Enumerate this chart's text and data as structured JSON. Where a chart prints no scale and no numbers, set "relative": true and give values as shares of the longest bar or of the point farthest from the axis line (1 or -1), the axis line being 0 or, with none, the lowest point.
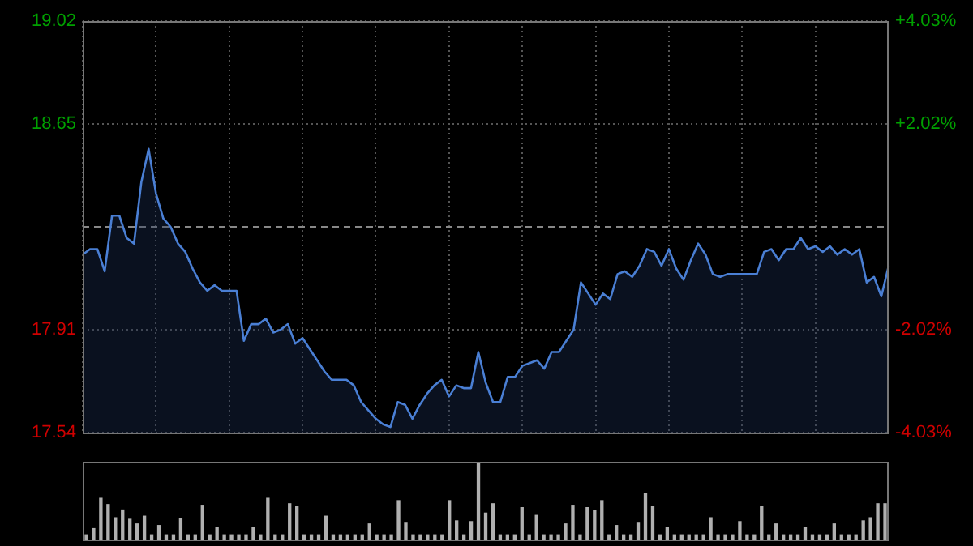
{
  "chart_data": [
    {
      "type": "area",
      "tick_labels": "y",
      "grid": true,
      "marker": "none",
      "line_style": "solid",
      "categories": [
        null,
        null,
        null,
        null,
        null,
        null,
        null,
        null,
        null,
        null,
        null,
        null,
        null,
        null,
        null,
        null,
        null,
        null,
        null,
        null,
        null,
        null,
        null,
        null,
        null,
        null,
        null,
        null,
        null,
        null,
        null,
        null,
        null,
        null,
        null,
        null,
        null,
        null,
        null,
        null,
        null,
        null,
        null,
        null,
        null,
        null,
        null,
        null,
        null,
        null,
        null,
        null,
        null,
        null,
        null,
        null,
        null,
        null,
        null,
        null,
        null,
        null,
        null,
        null,
        null,
        null,
        null,
        null,
        null,
        null,
        null,
        null,
        null,
        null,
        null,
        null,
        null,
        null,
        null,
        null,
        null,
        null,
        null,
        null,
        null,
        null,
        null,
        null,
        null,
        null,
        null,
        null,
        null,
        null,
        null,
        null,
        null,
        null,
        null,
        null,
        null,
        null,
        null,
        null,
        null,
        null,
        null,
        null,
        null,
        null,
        null
      ],
      "ylim": [
        17.54,
        19.02
      ],
      "yticks": [
        17.54,
        17.91,
        18.65,
        19.02
      ],
      "y2lim": [
        -4.03,
        4.03
      ],
      "y2ticks": [
        {
          "value": -4.03,
          "label": "-4.03%"
        },
        {
          "value": -2.02,
          "label": "-2.02%"
        },
        {
          "value": 2.02,
          "label": "+2.02%"
        },
        {
          "value": 4.03,
          "label": "+4.03%"
        }
      ],
      "ref_lines": [
        {
          "axis": "y",
          "value": 18.28,
          "line_style": "dashed",
          "color": "#888888"
        }
      ],
      "series": [
        {
          "color": "#4a7fd4",
          "values": [
            18.18,
            18.2,
            18.2,
            18.12,
            18.32,
            18.32,
            18.24,
            18.22,
            18.44,
            18.56,
            18.4,
            18.31,
            18.28,
            18.22,
            18.19,
            18.13,
            18.08,
            18.05,
            18.07,
            18.05,
            18.05,
            18.05,
            17.87,
            17.93,
            17.93,
            17.95,
            17.9,
            17.91,
            17.93,
            17.86,
            17.88,
            17.84,
            17.8,
            17.76,
            17.73,
            17.73,
            17.73,
            17.71,
            17.65,
            17.62,
            17.59,
            17.57,
            17.56,
            17.65,
            17.64,
            17.59,
            17.64,
            17.68,
            17.71,
            17.73,
            17.67,
            17.71,
            17.7,
            17.7,
            17.83,
            17.72,
            17.65,
            17.65,
            17.74,
            17.74,
            17.78,
            17.79,
            17.8,
            17.77,
            17.83,
            17.83,
            17.87,
            17.91,
            18.08,
            18.04,
            18.0,
            18.04,
            18.02,
            18.11,
            18.12,
            18.1,
            18.14,
            18.2,
            18.19,
            18.14,
            18.2,
            18.13,
            18.09,
            18.16,
            18.22,
            18.18,
            18.11,
            18.1,
            18.11,
            18.11,
            18.11,
            18.11,
            18.11,
            18.19,
            18.2,
            18.16,
            18.2,
            18.2,
            18.24,
            18.2,
            18.21,
            18.19,
            18.21,
            18.18,
            18.2,
            18.18,
            18.2,
            18.08,
            18.1,
            18.03,
            18.14
          ]
        }
      ]
    },
    {
      "type": "bar",
      "relative": true,
      "tick_labels": false,
      "color": "#b0b0b0",
      "categories": [
        null,
        null,
        null,
        null,
        null,
        null,
        null,
        null,
        null,
        null,
        null,
        null,
        null,
        null,
        null,
        null,
        null,
        null,
        null,
        null,
        null,
        null,
        null,
        null,
        null,
        null,
        null,
        null,
        null,
        null,
        null,
        null,
        null,
        null,
        null,
        null,
        null,
        null,
        null,
        null,
        null,
        null,
        null,
        null,
        null,
        null,
        null,
        null,
        null,
        null,
        null,
        null,
        null,
        null,
        null,
        null,
        null,
        null,
        null,
        null,
        null,
        null,
        null,
        null,
        null,
        null,
        null,
        null,
        null,
        null,
        null,
        null,
        null,
        null,
        null,
        null,
        null,
        null,
        null,
        null,
        null,
        null,
        null,
        null,
        null,
        null,
        null,
        null,
        null,
        null,
        null,
        null,
        null,
        null,
        null,
        null,
        null,
        null,
        null,
        null,
        null,
        null,
        null,
        null,
        null,
        null,
        null,
        null,
        null,
        null,
        null
      ],
      "values": [
        0.06,
        0.14,
        0.53,
        0.45,
        0.28,
        0.38,
        0.26,
        0.2,
        0.3,
        0.06,
        0.18,
        0.06,
        0.06,
        0.27,
        0.06,
        0.06,
        0.43,
        0.06,
        0.16,
        0.06,
        0.06,
        0.06,
        0.06,
        0.16,
        0.06,
        0.53,
        0.06,
        0.06,
        0.46,
        0.42,
        0.06,
        0.06,
        0.06,
        0.3,
        0.06,
        0.06,
        0.06,
        0.06,
        0.06,
        0.2,
        0.06,
        0.06,
        0.06,
        0.5,
        0.22,
        0.06,
        0.06,
        0.06,
        0.06,
        0.06,
        0.5,
        0.24,
        0.06,
        0.23,
        1,
        0.34,
        0.46,
        0.06,
        0.06,
        0.06,
        0.41,
        0.06,
        0.31,
        0.06,
        0.06,
        0.06,
        0.2,
        0.43,
        0.06,
        0.41,
        0.37,
        0.5,
        0.06,
        0.18,
        0.06,
        0.06,
        0.22,
        0.59,
        0.42,
        0.06,
        0.16,
        0.06,
        0.06,
        0.06,
        0.06,
        0.06,
        0.28,
        0.06,
        0.06,
        0.06,
        0.23,
        0.06,
        0.06,
        0.42,
        0.06,
        0.2,
        0.06,
        0.06,
        0.06,
        0.16,
        0.06,
        0.06,
        0.06,
        0.2,
        0.06,
        0.06,
        0.06,
        0.24,
        0.28,
        0.46,
        0.46
      ]
    }
  ]
}
